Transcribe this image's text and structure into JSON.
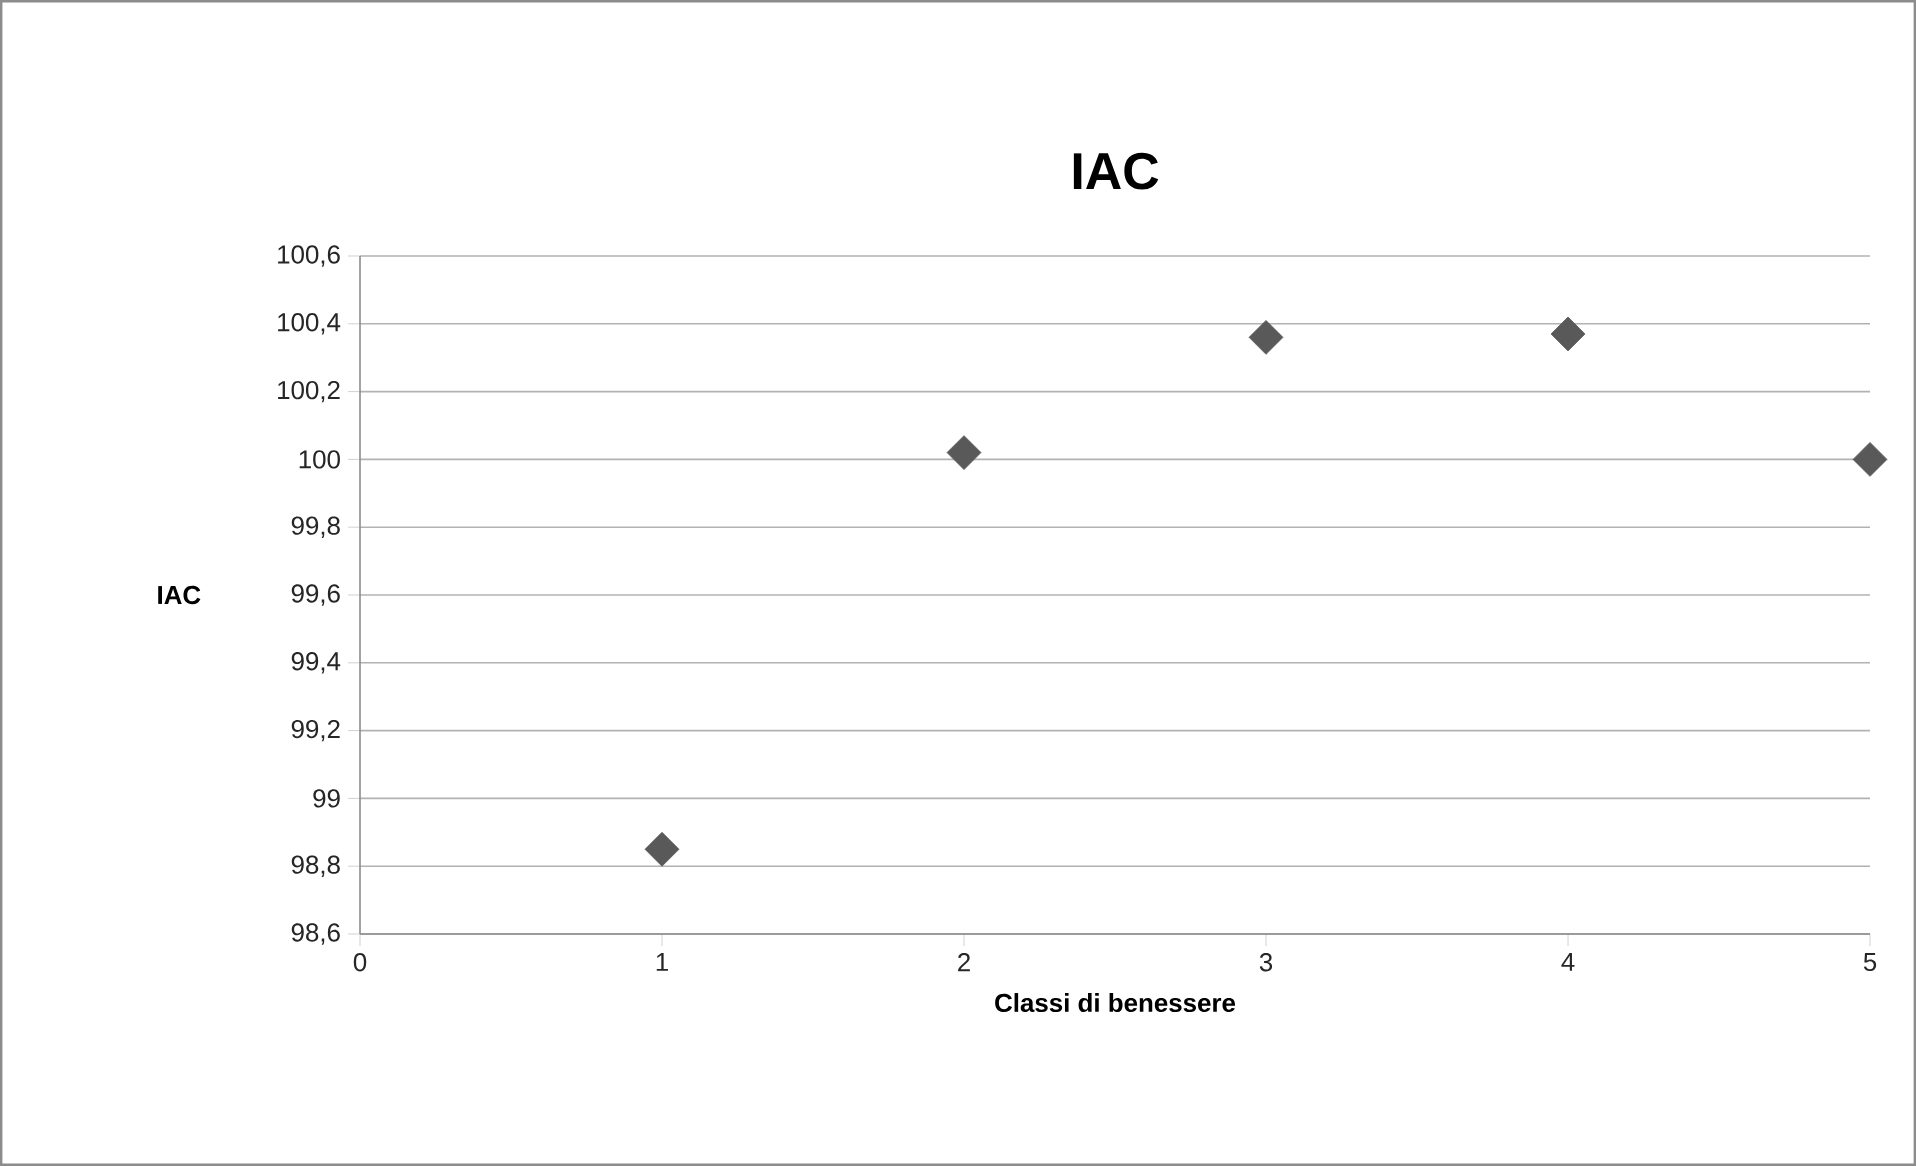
{
  "chart_data": {
    "type": "scatter",
    "title": "IAC",
    "xlabel": "Classi di benessere",
    "ylabel": "IAC",
    "x": [
      1,
      2,
      3,
      4,
      5
    ],
    "values": [
      98.85,
      100.02,
      100.36,
      100.37,
      100.0
    ],
    "color": "#595959",
    "marker": "diamond",
    "grid": "y",
    "xlim": [
      0,
      5
    ],
    "xticks": [
      0,
      1,
      2,
      3,
      4,
      5
    ],
    "ylim": [
      98.6,
      100.6
    ],
    "yticks": [
      {
        "value": 98.6,
        "label": "98,6"
      },
      {
        "value": 98.8,
        "label": "98,8"
      },
      {
        "value": 99,
        "label": "99"
      },
      {
        "value": 99.2,
        "label": "99,2"
      },
      {
        "value": 99.4,
        "label": "99,4"
      },
      {
        "value": 99.6,
        "label": "99,6"
      },
      {
        "value": 99.8,
        "label": "99,8"
      },
      {
        "value": 100,
        "label": "100"
      },
      {
        "value": 100.2,
        "label": "100,2"
      },
      {
        "value": 100.4,
        "label": "100,4"
      },
      {
        "value": 100.6,
        "label": "100,6"
      }
    ]
  }
}
